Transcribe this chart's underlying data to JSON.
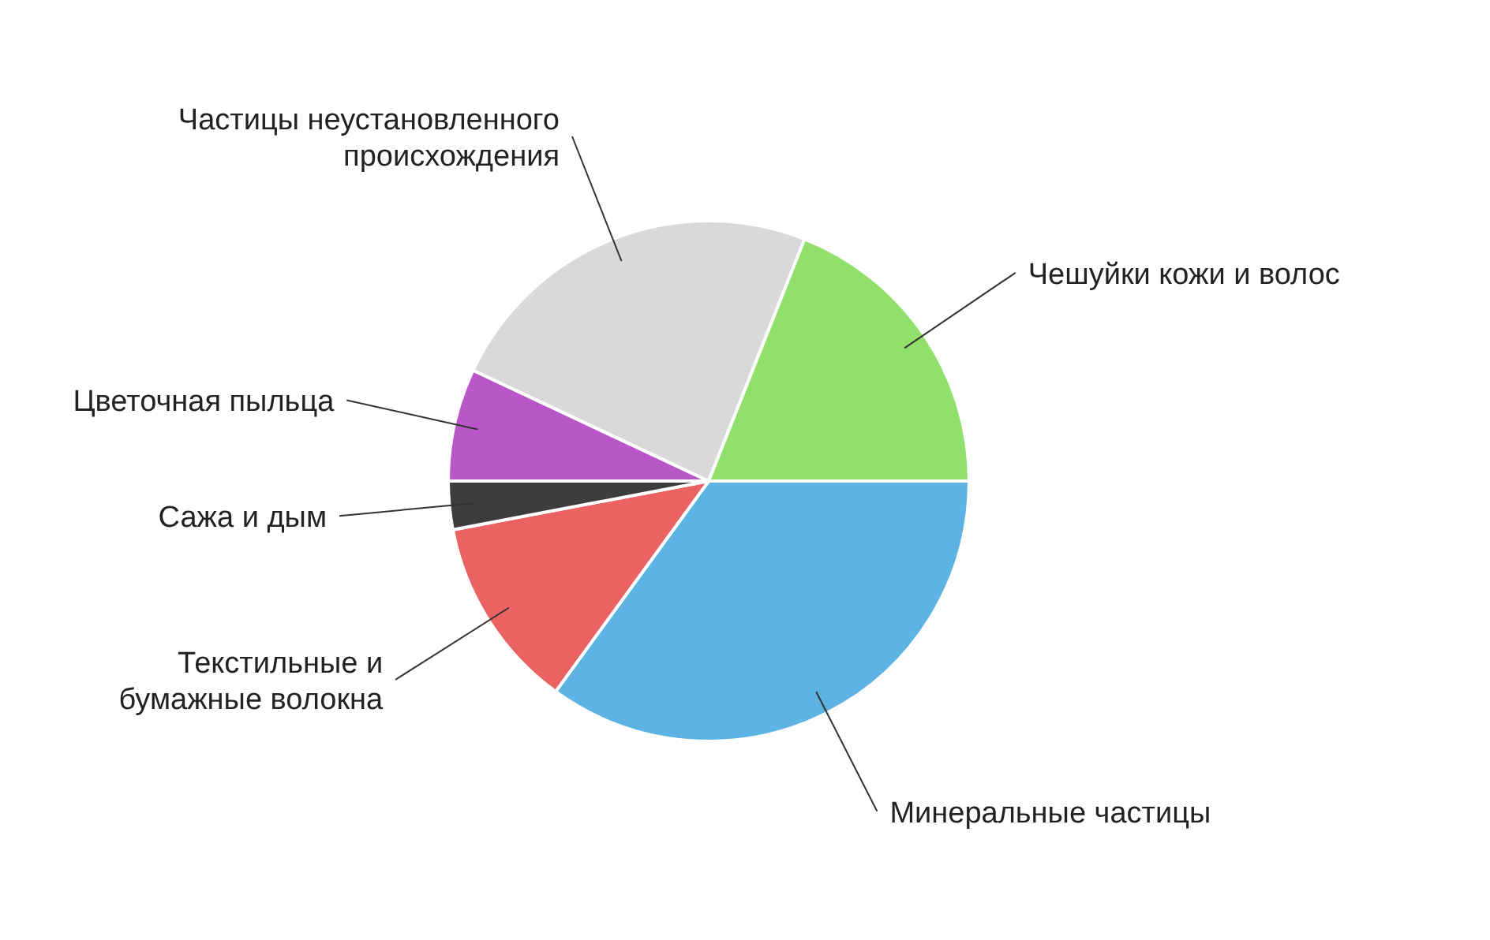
{
  "chart_data": {
    "type": "pie",
    "categories": [
      "Минеральные частицы",
      "Текстильные и бумажные волокна",
      "Сажа и дым",
      "Цветочная пыльца",
      "Частицы неустановленного происхождения",
      "Чешуйки кожи и волос"
    ],
    "values": [
      35,
      12,
      3,
      7,
      24,
      19
    ],
    "colors": [
      "#5db3e3",
      "#eb6262",
      "#3d3d3d",
      "#b957c9",
      "#d9d9d9",
      "#92e06c"
    ],
    "legend": false
  }
}
